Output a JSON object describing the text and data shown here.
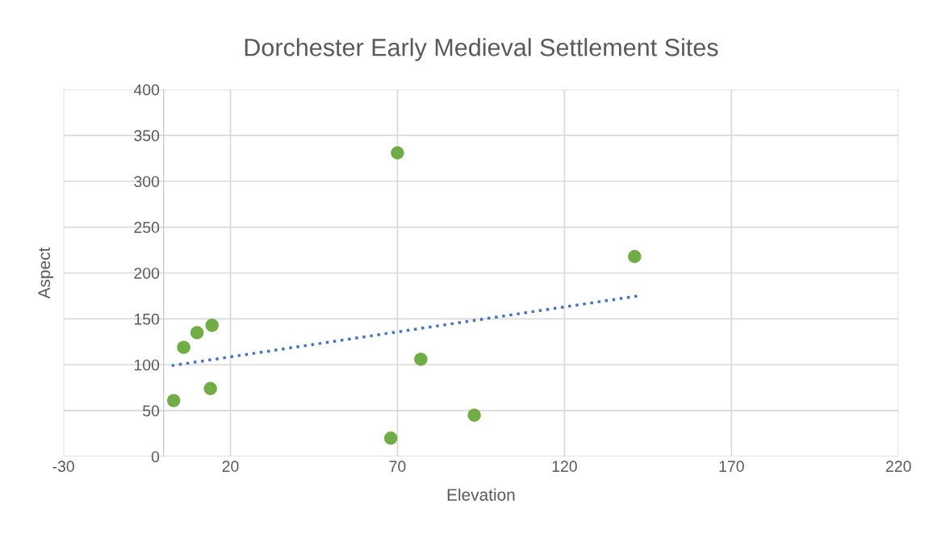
{
  "chart_data": {
    "type": "scatter",
    "title": "Dorchester Early Medieval Settlement Sites",
    "xlabel": "Elevation",
    "ylabel": "Aspect",
    "series": [
      {
        "color": "#70ad47",
        "marker": "circle",
        "x": [
          3,
          6,
          10,
          14.5,
          14,
          70,
          68,
          77,
          93,
          141
        ],
        "values": [
          61,
          119,
          135,
          143,
          74,
          331,
          20,
          106,
          45,
          218
        ]
      },
      {
        "type": "line",
        "color": "#4472c4",
        "line_style": "dotted",
        "marker": "none",
        "x": [
          2.4,
          142
        ],
        "values": [
          99,
          175
        ]
      }
    ],
    "xlim": [
      -30,
      220
    ],
    "xticks": [
      -30,
      20,
      70,
      120,
      170,
      220
    ],
    "ylim": [
      0,
      400
    ],
    "yticks": [
      0,
      50,
      100,
      150,
      200,
      250,
      300,
      350,
      400
    ],
    "grid": true,
    "legend": false
  }
}
